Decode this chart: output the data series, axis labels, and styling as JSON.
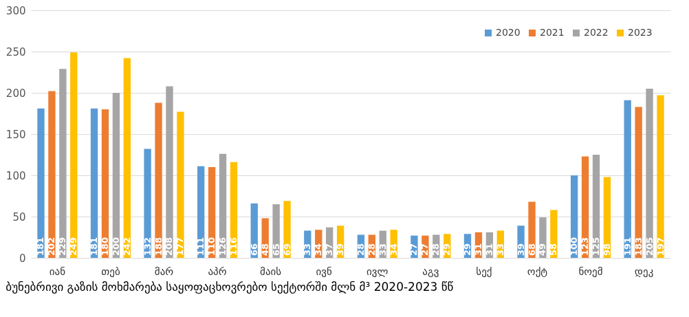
{
  "chart_data": {
    "type": "bar",
    "title": "ბუნებრივი გაზის მოხმარება საყოფაცხოვრებო სექტორში მლნ მ³ 2020-2023 წწ",
    "categories": [
      "იან",
      "თებ",
      "მარ",
      "აპრ",
      "მაის",
      "ივნ",
      "ივლ",
      "აგვ",
      "სექ",
      "ოქტ",
      "ნოემ",
      "დეკ"
    ],
    "series": [
      {
        "name": "2020",
        "color": "#5b9bd5",
        "values": [
          181,
          181,
          132,
          111,
          66,
          33,
          28,
          27,
          29,
          39,
          100,
          191
        ]
      },
      {
        "name": "2021",
        "color": "#ed7d31",
        "values": [
          202,
          180,
          188,
          110,
          48,
          34,
          28,
          27,
          31,
          68,
          123,
          183
        ]
      },
      {
        "name": "2022",
        "color": "#a5a5a5",
        "values": [
          229,
          200,
          208,
          126,
          65,
          37,
          33,
          28,
          31,
          49,
          125,
          205
        ]
      },
      {
        "name": "2023",
        "color": "#ffc000",
        "values": [
          249,
          242,
          177,
          116,
          69,
          39,
          34,
          29,
          33,
          58,
          98,
          197
        ]
      }
    ],
    "ylim": [
      0,
      300
    ],
    "yticks": [
      0,
      50,
      100,
      150,
      200,
      250,
      300
    ],
    "grid": "y",
    "legend": "top right",
    "data_labels": true
  }
}
